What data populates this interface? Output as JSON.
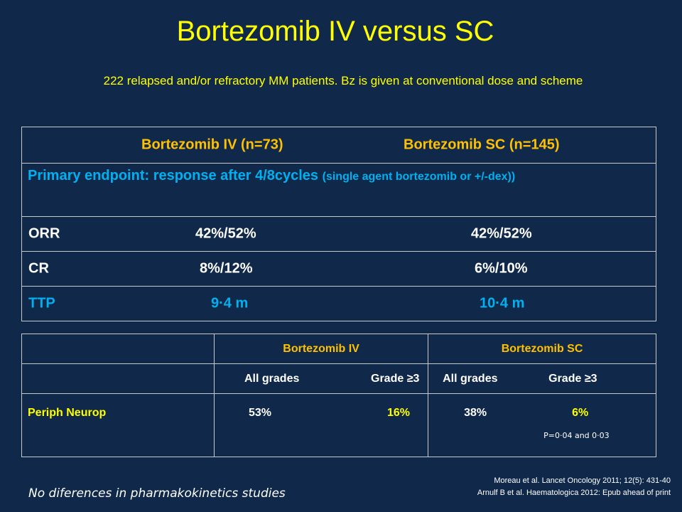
{
  "title": "Bortezomib IV versus SC",
  "subtitle": "222 relapsed and/or refractory MM patients. Bz is given at conventional dose and scheme",
  "table1": {
    "header_iv": "Bortezomib IV (n=73)",
    "header_sc": "Bortezomib SC (n=145)",
    "primary_endpoint_main": "Primary endpoint: response after 4/8cycles",
    "primary_endpoint_detail": "(single agent bortezomib or +/-dex))",
    "rows": [
      {
        "label": "ORR",
        "iv": "42%/52%",
        "sc": "42%/52%"
      },
      {
        "label": "CR",
        "iv": "8%/12%",
        "sc": "6%/10%"
      },
      {
        "label": "TTP",
        "iv": "9·4 m",
        "sc": "10·4 m"
      }
    ]
  },
  "table2": {
    "group_iv": "Bortezomib IV",
    "group_sc": "Bortezomib SC",
    "subheaders": [
      "All grades",
      "Grade ≥3",
      "All grades",
      "Grade ≥3"
    ],
    "row_label": "Periph Neurop",
    "values": [
      "53%",
      "16%",
      "38%",
      "6%"
    ],
    "p_value": "P=0·04 and 0·03"
  },
  "references": [
    "Moreau et al. Lancet Oncology 2011; 12(5): 431-40",
    "Arnulf B et al. Haematologica 2012: Epub ahead of print"
  ],
  "note": "No diferences in pharmakokinetics studies"
}
